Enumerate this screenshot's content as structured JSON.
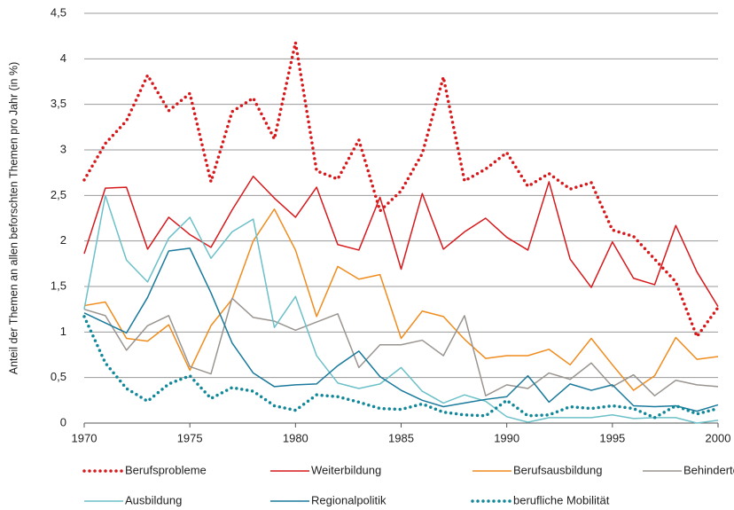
{
  "chart_data": {
    "type": "line",
    "y_label": "Anteil der Themen an allen beforschten Themen pro Jahr (in %)",
    "x": [
      1970,
      1971,
      1972,
      1973,
      1974,
      1975,
      1976,
      1977,
      1978,
      1979,
      1980,
      1981,
      1982,
      1983,
      1984,
      1985,
      1986,
      1987,
      1988,
      1989,
      1990,
      1991,
      1992,
      1993,
      1994,
      1995,
      1996,
      1997,
      1998,
      1999,
      2000
    ],
    "xlim": [
      1970,
      2000
    ],
    "xticks": [
      1970,
      1975,
      1980,
      1985,
      1990,
      1995,
      2000
    ],
    "ylim": [
      0,
      4.5
    ],
    "yticks": [
      0,
      {
        "value": 0.5,
        "label": "0,5"
      },
      1,
      {
        "value": 1.5,
        "label": "1,5"
      },
      2,
      {
        "value": 2.5,
        "label": "2,5"
      },
      3,
      {
        "value": 3.5,
        "label": "3,5"
      },
      4,
      {
        "value": 4.5,
        "label": "4,5"
      }
    ],
    "grid": true,
    "series": [
      {
        "name": "Berufsprobleme",
        "color": "#d7191c",
        "style": "dotted",
        "values": [
          2.67,
          3.07,
          3.32,
          3.82,
          3.43,
          3.62,
          2.65,
          3.42,
          3.57,
          3.12,
          4.18,
          2.77,
          2.68,
          3.11,
          2.33,
          2.55,
          2.96,
          3.8,
          2.66,
          2.79,
          2.97,
          2.6,
          2.74,
          2.57,
          2.64,
          2.12,
          2.05,
          1.8,
          1.55,
          0.95,
          1.27
        ]
      },
      {
        "name": "Weiterbildung",
        "color": "#d7191c",
        "style": "solid",
        "values": [
          1.86,
          2.58,
          2.59,
          1.91,
          2.26,
          2.07,
          1.93,
          2.34,
          2.71,
          2.47,
          2.26,
          2.59,
          1.96,
          1.9,
          2.48,
          1.69,
          2.52,
          1.91,
          2.1,
          2.25,
          2.04,
          1.9,
          2.65,
          1.8,
          1.49,
          1.99,
          1.59,
          1.52,
          2.17,
          1.66,
          1.28
        ]
      },
      {
        "name": "Berufsausbildung",
        "color": "#f08c1e",
        "style": "solid",
        "values": [
          1.29,
          1.33,
          0.93,
          0.9,
          1.08,
          0.58,
          1.07,
          1.36,
          2.0,
          2.35,
          1.9,
          1.17,
          1.72,
          1.58,
          1.63,
          0.93,
          1.23,
          1.17,
          0.92,
          0.71,
          0.74,
          0.74,
          0.81,
          0.64,
          0.93,
          0.64,
          0.36,
          0.52,
          0.94,
          0.7,
          0.73
        ]
      },
      {
        "name": "Behinderte",
        "color": "#9a9590",
        "style": "solid",
        "values": [
          1.25,
          1.18,
          0.8,
          1.07,
          1.18,
          0.62,
          0.54,
          1.37,
          1.16,
          1.12,
          1.02,
          1.11,
          1.2,
          0.61,
          0.86,
          0.86,
          0.91,
          0.74,
          1.18,
          0.3,
          0.42,
          0.38,
          0.55,
          0.48,
          0.66,
          0.4,
          0.53,
          0.3,
          0.47,
          0.42,
          0.4
        ]
      },
      {
        "name": "Ausbildung",
        "color": "#6cc0c8",
        "style": "solid",
        "values": [
          1.25,
          2.5,
          1.79,
          1.55,
          2.03,
          2.26,
          1.81,
          2.1,
          2.24,
          1.05,
          1.39,
          0.74,
          0.44,
          0.38,
          0.43,
          0.61,
          0.35,
          0.22,
          0.31,
          0.24,
          0.07,
          0.01,
          0.06,
          0.06,
          0.06,
          0.09,
          0.05,
          0.06,
          0.06,
          0.0,
          0.03
        ]
      },
      {
        "name": "Regionalpolitik",
        "color": "#1a7a9c",
        "style": "solid",
        "values": [
          1.21,
          1.1,
          0.99,
          1.38,
          1.89,
          1.92,
          1.43,
          0.88,
          0.55,
          0.4,
          0.42,
          0.43,
          0.63,
          0.79,
          0.51,
          0.36,
          0.25,
          0.18,
          0.22,
          0.26,
          0.29,
          0.52,
          0.23,
          0.43,
          0.36,
          0.42,
          0.19,
          0.18,
          0.19,
          0.13,
          0.2
        ]
      },
      {
        "name": "berufliche Mobilität",
        "color": "#11879a",
        "style": "dotted",
        "values": [
          1.17,
          0.66,
          0.38,
          0.24,
          0.43,
          0.52,
          0.27,
          0.39,
          0.35,
          0.19,
          0.14,
          0.31,
          0.29,
          0.23,
          0.16,
          0.15,
          0.21,
          0.12,
          0.09,
          0.08,
          0.25,
          0.08,
          0.09,
          0.18,
          0.16,
          0.19,
          0.16,
          0.06,
          0.19,
          0.1,
          0.16
        ]
      }
    ]
  }
}
